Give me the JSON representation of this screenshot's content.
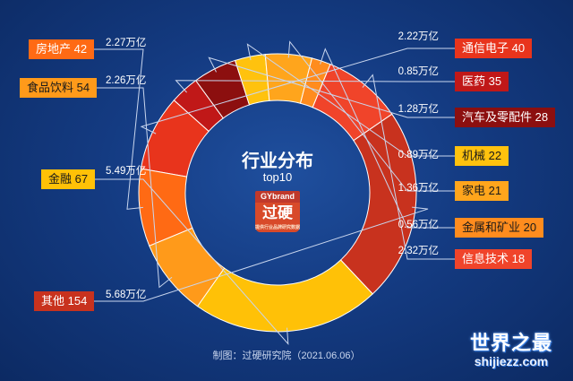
{
  "chart_data": {
    "type": "pie",
    "title": "行业分布",
    "subtitle": "top10",
    "slices": [
      {
        "label": "通信电子 40",
        "value": 2.22,
        "value_label": "2.22万亿",
        "color": "#e8341c"
      },
      {
        "label": "医药 35",
        "value": 0.85,
        "value_label": "0.85万亿",
        "color": "#c01818"
      },
      {
        "label": "汽车及零配件 28",
        "value": 1.28,
        "value_label": "1.28万亿",
        "color": "#8c0f0f"
      },
      {
        "label": "机械 22",
        "value": 0.89,
        "value_label": "0.89万亿",
        "color": "#ffc20e"
      },
      {
        "label": "家电 21",
        "value": 1.36,
        "value_label": "1.36万亿",
        "color": "#ffa51c"
      },
      {
        "label": "金属和矿业 20",
        "value": 0.56,
        "value_label": "0.56万亿",
        "color": "#ff8c1e"
      },
      {
        "label": "信息技术 18",
        "value": 2.32,
        "value_label": "2.32万亿",
        "color": "#f0442a"
      },
      {
        "label": "其他 154",
        "value": 5.68,
        "value_label": "5.68万亿",
        "color": "#c8321e"
      },
      {
        "label": "金融 67",
        "value": 5.49,
        "value_label": "5.49万亿",
        "color": "#ffc107"
      },
      {
        "label": "食品饮料 54",
        "value": 2.26,
        "value_label": "2.26万亿",
        "color": "#ff9a1a"
      },
      {
        "label": "房地产 42",
        "value": 2.27,
        "value_label": "2.27万亿",
        "color": "#ff6a14"
      }
    ]
  },
  "logo": {
    "top": "GYbrand",
    "main": "过硬",
    "small": "提供行业品牌研究数据"
  },
  "footer": "制图：过硬研究院（2021.06.06）",
  "watermark": {
    "line1": "世界之最",
    "line2": "shijiezz.com"
  }
}
